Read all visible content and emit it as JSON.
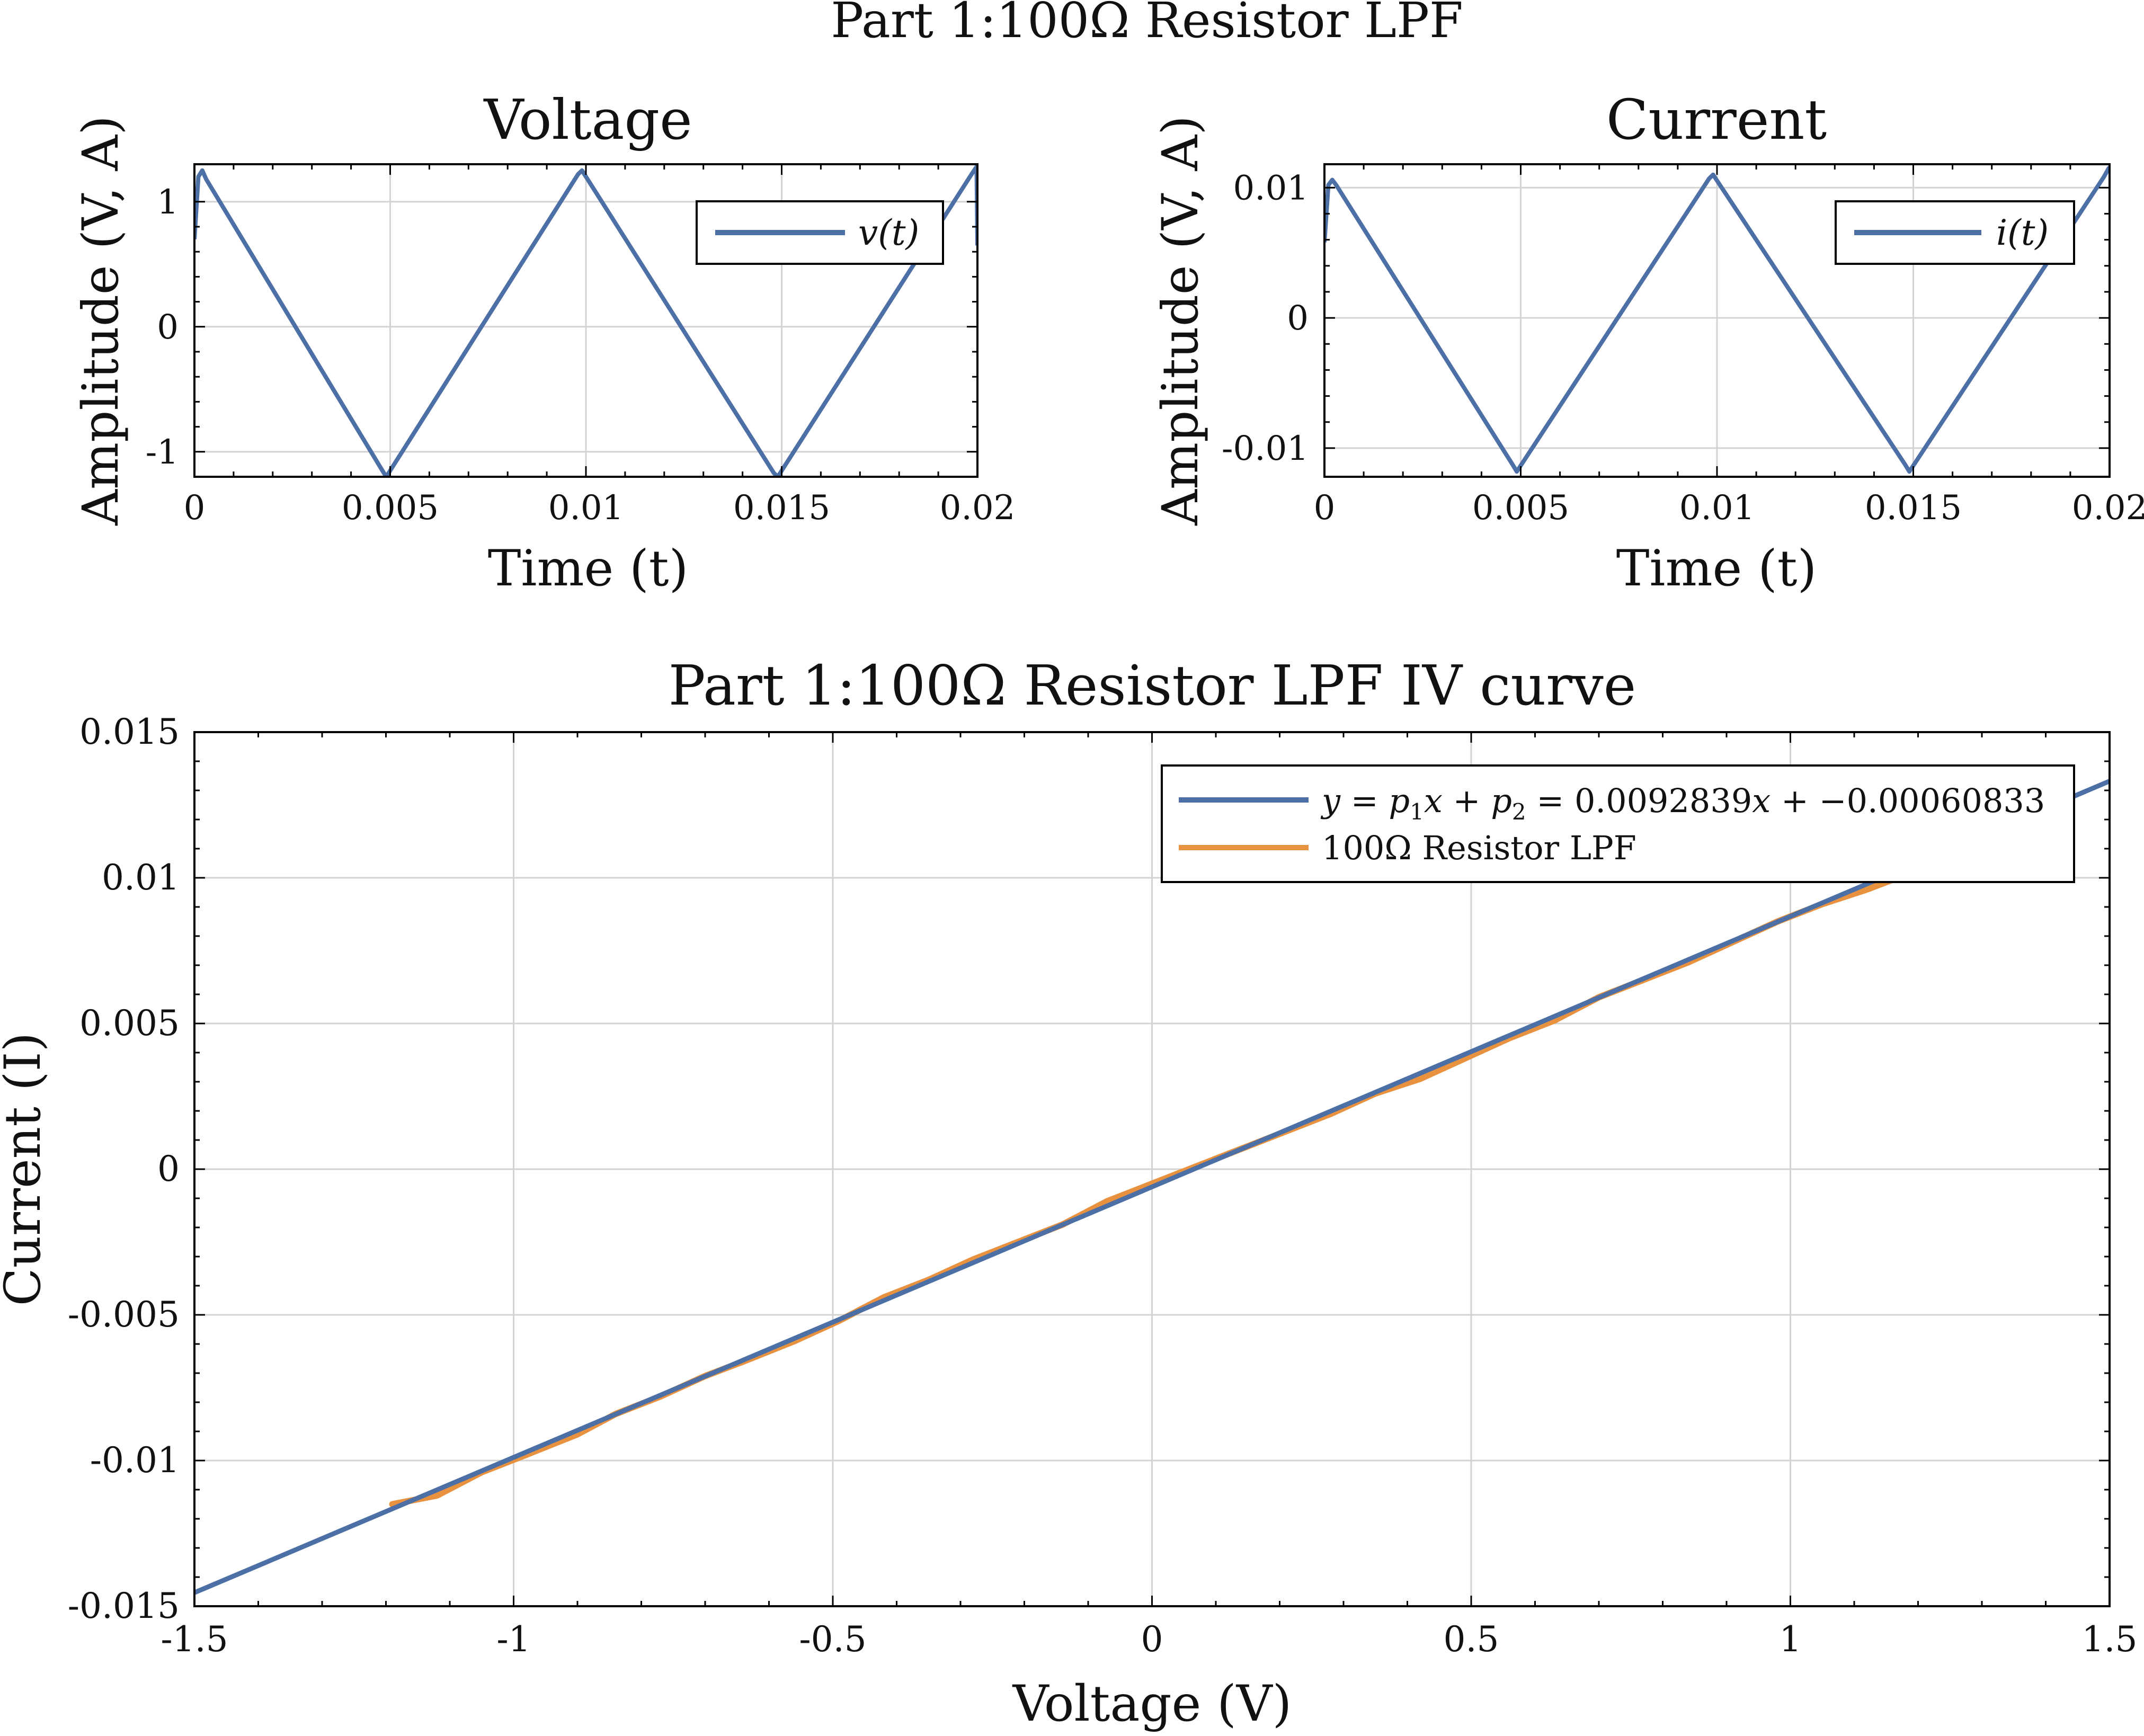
{
  "figure": {
    "suptitle": "Part 1:100Ω Resistor LPF"
  },
  "chart_data": [
    {
      "id": "voltage",
      "type": "line",
      "title": "Voltage",
      "xlabel": "Time (t)",
      "ylabel": "Amplitude (V, A)",
      "xlim": [
        0,
        0.02
      ],
      "ylim": [
        -1.2,
        1.3
      ],
      "xticks": [
        0,
        0.005,
        0.01,
        0.015,
        0.02
      ],
      "xtick_labels": [
        "0",
        "0.005",
        "0.01",
        "0.015",
        "0.02"
      ],
      "yticks": [
        -1,
        0,
        1
      ],
      "ytick_labels": [
        "-1",
        "0",
        "1"
      ],
      "grid": true,
      "legend_position": "top-right",
      "colors": {
        "series": "#4c6fa5"
      },
      "series": [
        {
          "name": "v(t)",
          "x": [
            0,
            0.0001,
            0.0002,
            0.0003,
            0.0048,
            0.0049,
            0.0098,
            0.0099,
            0.0148,
            0.0149,
            0.01985,
            0.01998,
            0.02
          ],
          "y": [
            0.7,
            1.2,
            1.25,
            1.18,
            -1.15,
            -1.2,
            1.22,
            1.25,
            -1.17,
            -1.2,
            1.22,
            1.28,
            0.65
          ]
        }
      ]
    },
    {
      "id": "current",
      "type": "line",
      "title": "Current",
      "xlabel": "Time (t)",
      "ylabel": "Amplitude (V, A)",
      "xlim": [
        0,
        0.02
      ],
      "ylim": [
        -0.0122,
        0.0118
      ],
      "xticks": [
        0,
        0.005,
        0.01,
        0.015,
        0.02
      ],
      "xtick_labels": [
        "0",
        "0.005",
        "0.01",
        "0.015",
        "0.02"
      ],
      "yticks": [
        -0.01,
        0,
        0.01
      ],
      "ytick_labels": [
        "-0.01",
        "0",
        "0.01"
      ],
      "grid": true,
      "legend_position": "top-right",
      "colors": {
        "series": "#4c6fa5"
      },
      "series": [
        {
          "name": "i(t)",
          "x": [
            0,
            0.0001,
            0.0002,
            0.0003,
            0.0048,
            0.0049,
            0.0098,
            0.0099,
            0.0148,
            0.0149,
            0.01985,
            0.01998,
            0.02
          ],
          "y": [
            0.0058,
            0.0102,
            0.0106,
            0.0102,
            -0.0113,
            -0.0118,
            0.0107,
            0.011,
            -0.0113,
            -0.0118,
            0.0108,
            0.0115,
            0.0115
          ]
        }
      ]
    },
    {
      "id": "iv",
      "type": "line",
      "title": "Part 1:100Ω Resistor LPF IV curve",
      "xlabel": "Voltage (V)",
      "ylabel": "Current (I)",
      "xlim": [
        -1.5,
        1.5
      ],
      "ylim": [
        -0.015,
        0.015
      ],
      "xticks": [
        -1.5,
        -1,
        -0.5,
        0,
        0.5,
        1,
        1.5
      ],
      "xtick_labels": [
        "-1.5",
        "-1",
        "-0.5",
        "0",
        "0.5",
        "1",
        "1.5"
      ],
      "yticks": [
        -0.015,
        -0.01,
        -0.005,
        0,
        0.005,
        0.01,
        0.015
      ],
      "ytick_labels": [
        "-0.015",
        "-0.01",
        "-0.005",
        "0",
        "0.005",
        "0.01",
        "0.015"
      ],
      "grid": true,
      "legend_position": "top-right",
      "colors": {
        "fit": "#4c6fa5",
        "data": "#e8913f"
      },
      "series": [
        {
          "name": "y = p1x + p2 = 0.0092839x + −0.00060833",
          "legend_label": {
            "y": "y",
            "eq1": " = ",
            "p1": "p",
            "sub1": "1",
            "x1": "x",
            "plus1": " + ",
            "p2": "p",
            "sub2": "2",
            "eq2": " = 0.0092839",
            "x2": "x",
            "rest": " + −0.00060833"
          },
          "fit": {
            "slope": 0.0092839,
            "intercept": -0.00060833
          },
          "x": [
            -1.5,
            1.5
          ]
        },
        {
          "name": "100Ω Resistor LPF",
          "x": [
            -1.19,
            -1.12,
            -1.05,
            -0.98,
            -0.9,
            -0.84,
            -0.77,
            -0.7,
            -0.64,
            -0.56,
            -0.49,
            -0.42,
            -0.35,
            -0.28,
            -0.21,
            -0.14,
            -0.07,
            0.0,
            0.07,
            0.14,
            0.21,
            0.28,
            0.35,
            0.42,
            0.49,
            0.56,
            0.63,
            0.7,
            0.77,
            0.84,
            0.91,
            0.98,
            1.05,
            1.12,
            1.18
          ],
          "y": [
            -0.0115,
            -0.0112,
            -0.0104,
            -0.0098,
            -0.0091,
            -0.0084,
            -0.0078,
            -0.0071,
            -0.0066,
            -0.0059,
            -0.0052,
            -0.0044,
            -0.0038,
            -0.0031,
            -0.0025,
            -0.0019,
            -0.0011,
            -0.0005,
            0.0001,
            0.0007,
            0.0013,
            0.0019,
            0.0026,
            0.0031,
            0.0038,
            0.0045,
            0.0051,
            0.0059,
            0.0065,
            0.0071,
            0.0078,
            0.0085,
            0.0091,
            0.0096,
            0.0101
          ]
        }
      ]
    }
  ]
}
